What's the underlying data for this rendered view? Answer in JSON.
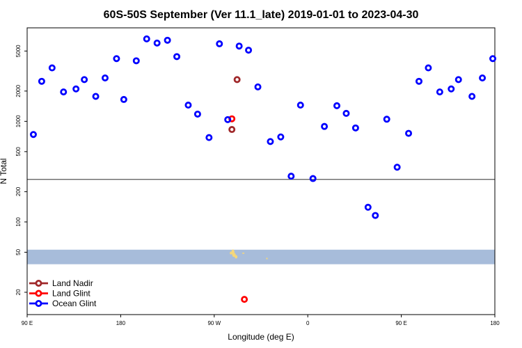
{
  "chart_data": {
    "type": "scatter",
    "title": "60S-50S September (Ver 11.1_late)   2019-01-01 to 2023-04-30",
    "xlabel": "Longitude (deg E)",
    "ylabel": "N Total",
    "x_tick_labels": [
      "90 E",
      "180",
      "90 W",
      "0",
      "90 E",
      "180"
    ],
    "x_tick_values": [
      90,
      180,
      270,
      360,
      450,
      540
    ],
    "xlim": [
      90,
      540
    ],
    "y_scale": "log",
    "y_tick_values": [
      20,
      50,
      100,
      200,
      500,
      1000,
      2000,
      5000
    ],
    "y_tick_labels": [
      "20",
      "50",
      "100",
      "200",
      "500",
      "1000",
      "2000",
      "5000"
    ],
    "ylim": [
      12,
      8500
    ],
    "reference_line_y": 265,
    "band": {
      "y_min": 38,
      "y_max": 53,
      "color": "#a7bcda"
    },
    "land_mask_color": "#f5d77a",
    "legend_position": "bottom-left",
    "series": [
      {
        "name": "Land Nadir",
        "color": "#a0282a",
        "points": [
          [
            292,
            2600
          ],
          [
            287,
            830
          ]
        ]
      },
      {
        "name": "Land Glint",
        "color": "#ff0000",
        "points": [
          [
            287,
            1060
          ],
          [
            299,
            17
          ]
        ]
      },
      {
        "name": "Ocean Glint",
        "color": "#0000ff",
        "points": [
          [
            96,
            740
          ],
          [
            104,
            2500
          ],
          [
            114,
            3400
          ],
          [
            125,
            1960
          ],
          [
            137,
            2100
          ],
          [
            145,
            2600
          ],
          [
            156,
            1770
          ],
          [
            165,
            2700
          ],
          [
            176,
            4200
          ],
          [
            183,
            1650
          ],
          [
            195,
            4000
          ],
          [
            205,
            6600
          ],
          [
            215,
            6000
          ],
          [
            225,
            6400
          ],
          [
            234,
            4400
          ],
          [
            245,
            1450
          ],
          [
            254,
            1180
          ],
          [
            265,
            690
          ],
          [
            275,
            5900
          ],
          [
            283,
            1040
          ],
          [
            294,
            5600
          ],
          [
            303,
            5100
          ],
          [
            312,
            2200
          ],
          [
            324,
            630
          ],
          [
            334,
            700
          ],
          [
            344,
            285
          ],
          [
            353,
            1450
          ],
          [
            365,
            270
          ],
          [
            376,
            890
          ],
          [
            388,
            1430
          ],
          [
            397,
            1200
          ],
          [
            406,
            860
          ],
          [
            418,
            140
          ],
          [
            425,
            116
          ],
          [
            436,
            1050
          ],
          [
            446,
            350
          ],
          [
            457,
            760
          ],
          [
            467,
            2500
          ],
          [
            476,
            3400
          ],
          [
            487,
            1960
          ],
          [
            498,
            2100
          ],
          [
            505,
            2600
          ],
          [
            518,
            1770
          ],
          [
            528,
            2700
          ],
          [
            538,
            4200
          ]
        ]
      }
    ]
  }
}
